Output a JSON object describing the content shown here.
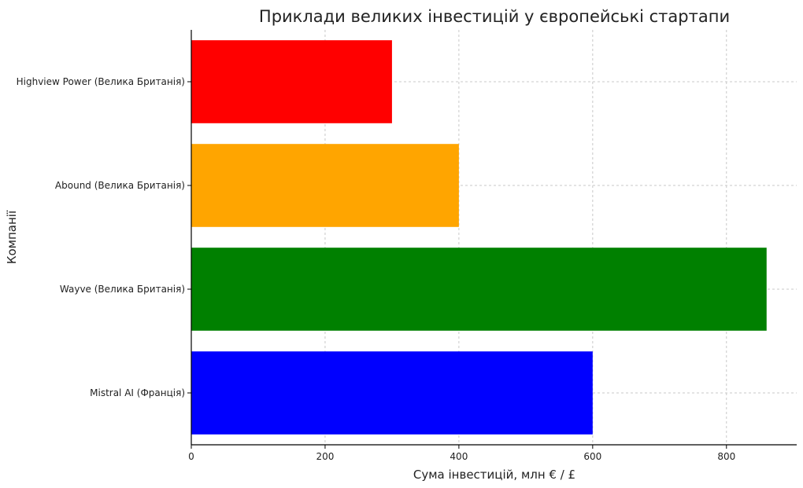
{
  "chart_data": {
    "type": "bar",
    "orientation": "horizontal",
    "title": "Приклади великих інвестицій у європейські стартапи",
    "xlabel": "Сума інвестицій, млн € / £",
    "ylabel": "Компанії",
    "xlim": [
      0,
      905
    ],
    "xticks": [
      0,
      200,
      400,
      600,
      800
    ],
    "grid": true,
    "categories": [
      "Mistral AI (Франція)",
      "Wayve (Велика Британія)",
      "Abound (Велика Британія)",
      "Highview Power (Велика Британія)"
    ],
    "values": [
      600,
      860,
      400,
      300
    ],
    "colors": [
      "#0000ff",
      "#008000",
      "#ffa500",
      "#ff0000"
    ]
  }
}
